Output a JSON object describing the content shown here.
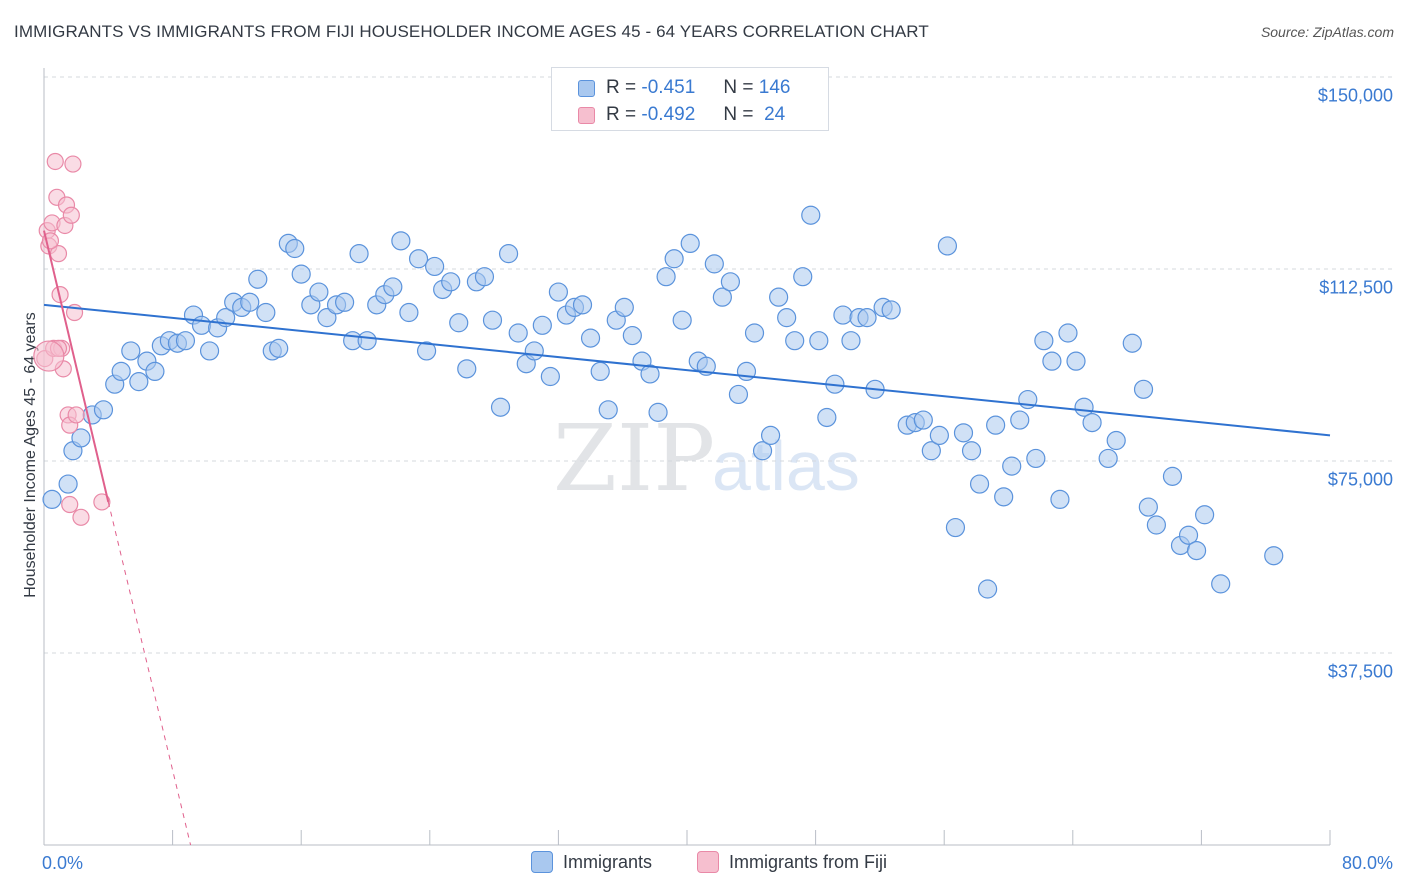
{
  "title": "IMMIGRANTS VS IMMIGRANTS FROM FIJI HOUSEHOLDER INCOME AGES 45 - 64 YEARS CORRELATION CHART",
  "source": "Source: ZipAtlas.com",
  "watermark": {
    "zip": "ZIP",
    "atlas": "atlas"
  },
  "legend_top": {
    "rows": [
      {
        "r_label": "R =",
        "r_value": "-0.451",
        "n_label": "N =",
        "n_value": "146"
      },
      {
        "r_label": "R =",
        "r_value": "-0.492",
        "n_label": "N =",
        "n_value": "24"
      }
    ]
  },
  "legend_bottom": [
    "Immigrants",
    "Immigrants from Fiji"
  ],
  "colors": {
    "blue_fill": "#a9c8ef",
    "blue_stroke": "#5b93dc",
    "blue_line": "#2f72d0",
    "pink_fill": "#f6bfcf",
    "pink_stroke": "#e989a7",
    "pink_line": "#e0608c",
    "tick_text": "#3a7ad1",
    "grid": "#d4d8de"
  },
  "chart_data": {
    "type": "scatter",
    "title": "IMMIGRANTS VS IMMIGRANTS FROM FIJI HOUSEHOLDER INCOME AGES 45 - 64 YEARS CORRELATION CHART",
    "xlabel": "",
    "ylabel": "Householder Income Ages 45 - 64 years",
    "x_unit": "%",
    "xlim": [
      0,
      80
    ],
    "ylim": [
      0,
      150000
    ],
    "x_tick_labels": [
      "0.0%",
      "80.0%"
    ],
    "y_ticks": [
      37500,
      75000,
      112500,
      150000
    ],
    "y_tick_labels": [
      "$37,500",
      "$75,000",
      "$112,500",
      "$150,000"
    ],
    "grid": "horizontal dashed",
    "legend_placement": "top-center and bottom",
    "series": [
      {
        "name": "Immigrants",
        "R": -0.451,
        "N": 146,
        "trend": {
          "x": [
            0,
            80
          ],
          "y": [
            105500,
            80000
          ]
        },
        "points": [
          [
            0.5,
            67500
          ],
          [
            1.5,
            70500
          ],
          [
            1.8,
            77000
          ],
          [
            2.3,
            79500
          ],
          [
            3.0,
            84000
          ],
          [
            3.7,
            85000
          ],
          [
            4.4,
            90000
          ],
          [
            4.8,
            92500
          ],
          [
            5.4,
            96500
          ],
          [
            5.9,
            90500
          ],
          [
            6.4,
            94500
          ],
          [
            6.9,
            92500
          ],
          [
            7.3,
            97500
          ],
          [
            7.8,
            98500
          ],
          [
            8.3,
            98000
          ],
          [
            8.8,
            98500
          ],
          [
            9.3,
            103500
          ],
          [
            9.8,
            101500
          ],
          [
            10.3,
            96500
          ],
          [
            10.8,
            101000
          ],
          [
            11.3,
            103000
          ],
          [
            11.8,
            106000
          ],
          [
            12.3,
            105000
          ],
          [
            12.8,
            106000
          ],
          [
            13.3,
            110500
          ],
          [
            13.8,
            104000
          ],
          [
            14.2,
            96500
          ],
          [
            14.6,
            97000
          ],
          [
            15.2,
            117500
          ],
          [
            15.6,
            116500
          ],
          [
            16.0,
            111500
          ],
          [
            16.6,
            105500
          ],
          [
            17.1,
            108000
          ],
          [
            17.6,
            103000
          ],
          [
            18.2,
            105500
          ],
          [
            18.7,
            106000
          ],
          [
            19.2,
            98500
          ],
          [
            19.6,
            115500
          ],
          [
            20.1,
            98500
          ],
          [
            20.7,
            105500
          ],
          [
            21.2,
            107500
          ],
          [
            21.7,
            109000
          ],
          [
            22.2,
            118000
          ],
          [
            22.7,
            104000
          ],
          [
            23.3,
            114500
          ],
          [
            23.8,
            96500
          ],
          [
            24.3,
            113000
          ],
          [
            24.8,
            108500
          ],
          [
            25.3,
            110000
          ],
          [
            25.8,
            102000
          ],
          [
            26.3,
            93000
          ],
          [
            26.9,
            110000
          ],
          [
            27.4,
            111000
          ],
          [
            27.9,
            102500
          ],
          [
            28.4,
            85500
          ],
          [
            28.9,
            115500
          ],
          [
            29.5,
            100000
          ],
          [
            30.0,
            94000
          ],
          [
            30.5,
            96500
          ],
          [
            31.0,
            101500
          ],
          [
            31.5,
            91500
          ],
          [
            32.0,
            108000
          ],
          [
            32.5,
            103500
          ],
          [
            33.0,
            105000
          ],
          [
            33.5,
            105500
          ],
          [
            34.0,
            99000
          ],
          [
            34.6,
            92500
          ],
          [
            35.1,
            85000
          ],
          [
            35.6,
            102500
          ],
          [
            36.1,
            105000
          ],
          [
            36.6,
            99500
          ],
          [
            37.2,
            94500
          ],
          [
            37.7,
            92000
          ],
          [
            38.2,
            84500
          ],
          [
            38.7,
            111000
          ],
          [
            39.2,
            114500
          ],
          [
            39.7,
            102500
          ],
          [
            40.2,
            117500
          ],
          [
            40.7,
            94500
          ],
          [
            41.2,
            93500
          ],
          [
            41.7,
            113500
          ],
          [
            42.2,
            107000
          ],
          [
            42.7,
            110000
          ],
          [
            43.2,
            88000
          ],
          [
            43.7,
            92500
          ],
          [
            44.2,
            100000
          ],
          [
            44.7,
            77000
          ],
          [
            45.2,
            80000
          ],
          [
            45.7,
            107000
          ],
          [
            46.2,
            103000
          ],
          [
            46.7,
            98500
          ],
          [
            47.2,
            111000
          ],
          [
            47.7,
            123000
          ],
          [
            48.2,
            98500
          ],
          [
            48.7,
            83500
          ],
          [
            49.2,
            90000
          ],
          [
            49.7,
            103500
          ],
          [
            50.2,
            98500
          ],
          [
            50.7,
            103000
          ],
          [
            51.2,
            103000
          ],
          [
            51.7,
            89000
          ],
          [
            52.2,
            105000
          ],
          [
            52.7,
            104500
          ],
          [
            53.7,
            82000
          ],
          [
            54.2,
            82500
          ],
          [
            54.7,
            83000
          ],
          [
            55.2,
            77000
          ],
          [
            55.7,
            80000
          ],
          [
            56.2,
            117000
          ],
          [
            56.7,
            62000
          ],
          [
            57.2,
            80500
          ],
          [
            57.7,
            77000
          ],
          [
            58.2,
            70500
          ],
          [
            58.7,
            50000
          ],
          [
            59.2,
            82000
          ],
          [
            59.7,
            68000
          ],
          [
            60.2,
            74000
          ],
          [
            60.7,
            83000
          ],
          [
            61.2,
            87000
          ],
          [
            61.7,
            75500
          ],
          [
            62.2,
            98500
          ],
          [
            62.7,
            94500
          ],
          [
            63.2,
            67500
          ],
          [
            63.7,
            100000
          ],
          [
            64.2,
            94500
          ],
          [
            64.7,
            85500
          ],
          [
            65.2,
            82500
          ],
          [
            66.2,
            75500
          ],
          [
            66.7,
            79000
          ],
          [
            67.7,
            98000
          ],
          [
            68.4,
            89000
          ],
          [
            68.7,
            66000
          ],
          [
            69.2,
            62500
          ],
          [
            70.2,
            72000
          ],
          [
            70.7,
            58500
          ],
          [
            71.2,
            60500
          ],
          [
            71.7,
            57500
          ],
          [
            72.2,
            64500
          ],
          [
            73.2,
            51000
          ],
          [
            76.5,
            56500
          ]
        ]
      },
      {
        "name": "Immigrants from Fiji",
        "R": -0.492,
        "N": 24,
        "trend": {
          "x": [
            0,
            4.0
          ],
          "y": [
            120000,
            67000
          ],
          "dashed_extension": {
            "x": [
              4.0,
              9.5
            ],
            "y": [
              67000,
              -5000
            ]
          }
        },
        "points": [
          [
            0.05,
            95000
          ],
          [
            0.2,
            120000
          ],
          [
            0.3,
            117000
          ],
          [
            0.5,
            121500
          ],
          [
            0.6,
            97000
          ],
          [
            0.7,
            133500
          ],
          [
            0.8,
            126500
          ],
          [
            0.9,
            115500
          ],
          [
            1.0,
            107500
          ],
          [
            1.1,
            97000
          ],
          [
            1.2,
            93000
          ],
          [
            1.3,
            121000
          ],
          [
            1.4,
            125000
          ],
          [
            1.5,
            84000
          ],
          [
            1.6,
            82000
          ],
          [
            1.7,
            123000
          ],
          [
            1.8,
            133000
          ],
          [
            1.9,
            104000
          ],
          [
            2.0,
            84000
          ],
          [
            2.3,
            64000
          ],
          [
            3.6,
            67000
          ],
          [
            1.6,
            66500
          ],
          [
            0.4,
            118000
          ],
          [
            0.9,
            97000
          ]
        ]
      }
    ]
  }
}
